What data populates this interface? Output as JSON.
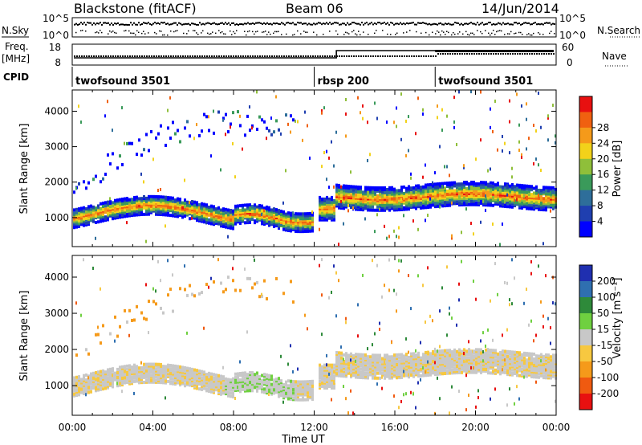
{
  "header": {
    "station": "Blackstone (fitACF)",
    "beam": "Beam 06",
    "date": "14/Jun/2014"
  },
  "strip_labels": {
    "nsky": "N.Sky",
    "nsearch": "N.Search",
    "freq_line1": "Freq.",
    "freq_line2": "[MHz]",
    "nave": "Nave",
    "cpid": "CPID"
  },
  "strip_ticks": {
    "left_top": "10^5",
    "left_bottom": "10^0",
    "right_top": "10^5",
    "right_bottom": "10^0",
    "freq_top": "18",
    "freq_bottom": "8",
    "nave_top": "60",
    "nave_bottom": "0"
  },
  "cpid_segments": [
    {
      "label": "twofsound 3501",
      "start_hour": 0
    },
    {
      "label": "rbsp 200",
      "start_hour": 12
    },
    {
      "label": "twofsound 3501",
      "start_hour": 18
    }
  ],
  "colors": {
    "power": [
      "#0000ff",
      "#1f3fb0",
      "#2e6e9a",
      "#3a9a5a",
      "#8fbf3a",
      "#f2d21a",
      "#f59a1a",
      "#f06010",
      "#e81010"
    ],
    "velocity": [
      "#1f2fb0",
      "#2f6fb0",
      "#2e8a3a",
      "#6fd040",
      "#c8c8c8",
      "#f7c840",
      "#f59a1a",
      "#f05a10",
      "#e81010"
    ]
  },
  "chart_data": [
    {
      "type": "heatmap",
      "name": "power",
      "ylabel": "Slant Range [km]",
      "xlabel": "Time UT",
      "xlim_hours": [
        0,
        24
      ],
      "ylim": [
        180,
        4600
      ],
      "yticks": [
        1000,
        2000,
        3000,
        4000
      ],
      "xticks": [
        "00:00",
        "04:00",
        "08:00",
        "12:00",
        "16:00",
        "20:00",
        "00:00"
      ],
      "colorbar": {
        "label": "Power [dB]",
        "tick_labels": [
          "4",
          "8",
          "12",
          "16",
          "20",
          "24",
          "28"
        ]
      }
    },
    {
      "type": "heatmap",
      "name": "velocity",
      "ylabel": "Slant Range [km]",
      "xlabel": "Time UT",
      "xlim_hours": [
        0,
        24
      ],
      "ylim": [
        180,
        4600
      ],
      "yticks": [
        1000,
        2000,
        3000,
        4000
      ],
      "xticks": [
        "00:00",
        "04:00",
        "08:00",
        "12:00",
        "16:00",
        "20:00",
        "00:00"
      ],
      "colorbar": {
        "label": "Velocity [m s⁻¹]",
        "tick_labels": [
          "200",
          "100",
          "50",
          "15",
          "-15",
          "-50",
          "-100",
          "-200"
        ]
      }
    }
  ]
}
